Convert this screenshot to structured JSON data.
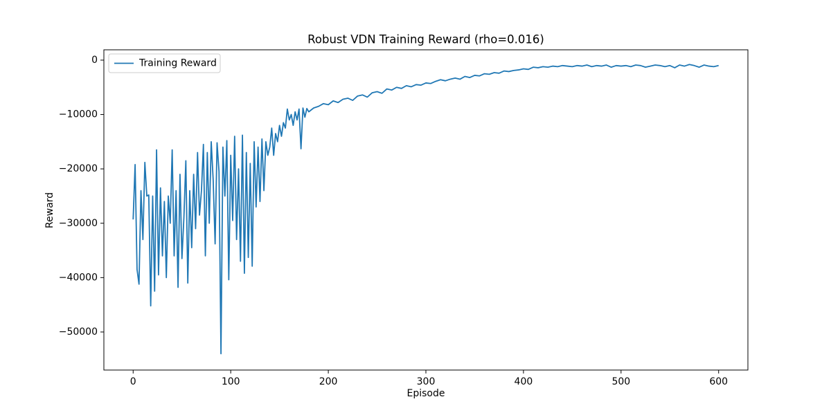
{
  "chart_data": {
    "type": "line",
    "title": "Robust VDN Training Reward (rho=0.016)",
    "x_label": "Episode",
    "y_label": "Reward",
    "x": [
      0,
      2,
      4,
      6,
      8,
      10,
      12,
      14,
      16,
      18,
      20,
      22,
      24,
      26,
      28,
      30,
      32,
      34,
      36,
      38,
      40,
      42,
      44,
      46,
      48,
      50,
      52,
      54,
      56,
      58,
      60,
      62,
      64,
      66,
      68,
      70,
      72,
      74,
      76,
      78,
      80,
      82,
      84,
      86,
      88,
      90,
      92,
      94,
      96,
      98,
      100,
      102,
      104,
      106,
      108,
      110,
      112,
      114,
      116,
      118,
      120,
      122,
      124,
      126,
      128,
      130,
      132,
      134,
      136,
      138,
      140,
      142,
      144,
      146,
      148,
      150,
      152,
      154,
      156,
      158,
      160,
      162,
      164,
      166,
      168,
      170,
      172,
      174,
      176,
      178,
      180,
      185,
      190,
      195,
      200,
      205,
      210,
      215,
      220,
      225,
      230,
      235,
      240,
      245,
      250,
      255,
      260,
      265,
      270,
      275,
      280,
      285,
      290,
      295,
      300,
      305,
      310,
      315,
      320,
      325,
      330,
      335,
      340,
      345,
      350,
      355,
      360,
      365,
      370,
      375,
      380,
      385,
      390,
      395,
      400,
      405,
      410,
      415,
      420,
      425,
      430,
      435,
      440,
      445,
      450,
      455,
      460,
      465,
      470,
      475,
      480,
      485,
      490,
      495,
      500,
      505,
      510,
      515,
      520,
      525,
      530,
      535,
      540,
      545,
      550,
      555,
      560,
      565,
      570,
      575,
      580,
      585,
      590,
      595,
      600
    ],
    "series": [
      {
        "name": "Training Reward",
        "color": "#1f77b4",
        "values": [
          -29300,
          -19200,
          -38500,
          -41200,
          -24000,
          -33000,
          -18800,
          -25000,
          -24800,
          -45200,
          -25000,
          -42500,
          -16500,
          -39500,
          -23500,
          -36000,
          -26000,
          -40000,
          -25000,
          -30000,
          -16500,
          -36000,
          -24000,
          -41800,
          -21000,
          -36500,
          -29000,
          -18500,
          -41000,
          -24000,
          -34500,
          -21000,
          -31000,
          -17000,
          -28500,
          -24000,
          -15500,
          -36000,
          -17000,
          -30000,
          -15000,
          -22000,
          -33800,
          -15200,
          -20500,
          -54000,
          -16000,
          -25000,
          -14800,
          -40400,
          -17500,
          -29500,
          -14000,
          -33000,
          -20000,
          -37000,
          -13800,
          -39200,
          -17000,
          -36300,
          -19000,
          -37900,
          -15000,
          -27000,
          -16000,
          -26000,
          -14500,
          -24000,
          -15000,
          -17500,
          -16000,
          -12500,
          -17500,
          -13500,
          -15000,
          -12000,
          -14000,
          -11500,
          -12500,
          -9000,
          -11000,
          -10000,
          -12000,
          -9500,
          -11000,
          -9000,
          -16300,
          -8800,
          -10500,
          -8900,
          -9500,
          -8800,
          -8500,
          -8000,
          -8200,
          -7500,
          -7800,
          -7200,
          -7000,
          -7400,
          -6600,
          -6400,
          -6800,
          -6000,
          -5800,
          -6100,
          -5300,
          -5500,
          -5000,
          -5200,
          -4700,
          -4900,
          -4500,
          -4600,
          -4200,
          -4300,
          -3900,
          -3600,
          -3800,
          -3500,
          -3300,
          -3500,
          -3000,
          -3200,
          -2800,
          -2900,
          -2500,
          -2600,
          -2300,
          -2400,
          -2000,
          -2100,
          -1900,
          -1800,
          -1600,
          -1700,
          -1300,
          -1400,
          -1200,
          -1300,
          -1100,
          -1200,
          -1000,
          -1100,
          -1200,
          -1000,
          -1100,
          -900,
          -1200,
          -1000,
          -1100,
          -900,
          -1300,
          -1000,
          -1100,
          -1000,
          -1200,
          -900,
          -1000,
          -1300,
          -1100,
          -900,
          -1000,
          -1200,
          -1000,
          -1400,
          -900,
          -1100,
          -800,
          -1000,
          -1300,
          -900,
          -1100,
          -1200,
          -1000
        ]
      }
    ],
    "xlim": [
      -30,
      630
    ],
    "ylim": [
      -57000,
      1900
    ],
    "xticks": [
      0,
      100,
      200,
      300,
      400,
      500,
      600
    ],
    "yticks": [
      0,
      {
        "value": -10000,
        "label": "−10000"
      },
      {
        "value": -20000,
        "label": "−20000"
      },
      {
        "value": -30000,
        "label": "−30000"
      },
      {
        "value": -40000,
        "label": "−40000"
      },
      {
        "value": -50000,
        "label": "−50000"
      }
    ],
    "legend": "upper left"
  }
}
